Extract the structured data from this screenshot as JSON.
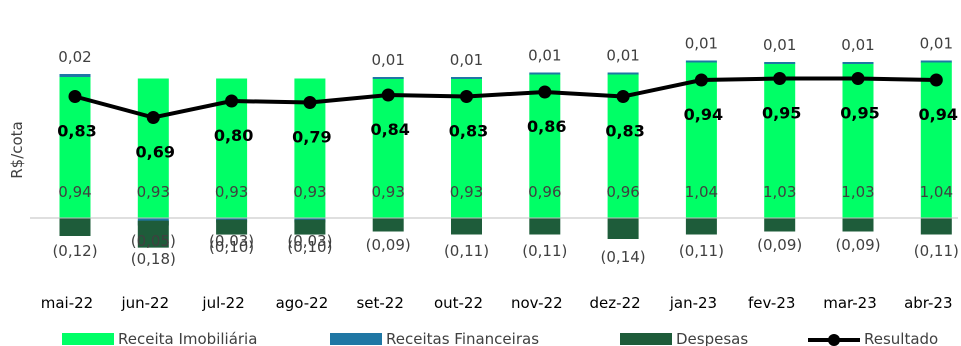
{
  "chart_data": {
    "type": "bar",
    "ylabel": "R$/cota",
    "categories": [
      "mai-22",
      "jun-22",
      "jul-22",
      "ago-22",
      "set-22",
      "out-22",
      "nov-22",
      "dez-22",
      "jan-23",
      "fev-23",
      "mar-23",
      "abr-23"
    ],
    "series": [
      {
        "name": "Receita Imobiliária",
        "kind": "stacked-bar",
        "color": "#00FF66",
        "values": [
          0.94,
          0.93,
          0.93,
          0.93,
          0.93,
          0.93,
          0.96,
          0.96,
          1.04,
          1.03,
          1.03,
          1.04
        ],
        "labels": [
          "0,94",
          "0,93",
          "0,93",
          "0,93",
          "0,93",
          "0,93",
          "0,96",
          "0,96",
          "1,04",
          "1,03",
          "1,03",
          "1,04"
        ]
      },
      {
        "name": "Receitas Financeiras",
        "kind": "stacked-bar",
        "color": "#1F77A4",
        "values": [
          0.02,
          -0.05,
          -0.03,
          -0.03,
          0.01,
          0.01,
          0.01,
          0.01,
          0.01,
          0.01,
          0.01,
          0.01
        ],
        "labels": [
          "0,02",
          "(0,05)",
          "(0,03)",
          "(0,03)",
          "0,01",
          "0,01",
          "0,01",
          "0,01",
          "0,01",
          "0,01",
          "0,01",
          "0,01"
        ]
      },
      {
        "name": "Despesas",
        "kind": "stacked-bar",
        "color": "#1E5C3A",
        "values": [
          -0.12,
          -0.18,
          -0.1,
          -0.1,
          -0.09,
          -0.11,
          -0.11,
          -0.14,
          -0.11,
          -0.09,
          -0.09,
          -0.11
        ],
        "labels": [
          "(0,12)",
          "(0,18)",
          "(0,10)",
          "(0,10)",
          "(0,09)",
          "(0,11)",
          "(0,11)",
          "(0,14)",
          "(0,11)",
          "(0,09)",
          "(0,09)",
          "(0,11)"
        ]
      },
      {
        "name": "Resultado",
        "kind": "line",
        "color": "#000000",
        "values": [
          0.83,
          0.69,
          0.8,
          0.79,
          0.84,
          0.83,
          0.86,
          0.83,
          0.94,
          0.95,
          0.95,
          0.94
        ],
        "labels": [
          "0,83",
          "0,69",
          "0,80",
          "0,79",
          "0,84",
          "0,83",
          "0,86",
          "0,83",
          "0,94",
          "0,95",
          "0,95",
          "0,94"
        ]
      }
    ],
    "ylim": [
      -0.22,
      1.18
    ],
    "grid": false,
    "legend": "bottom"
  }
}
